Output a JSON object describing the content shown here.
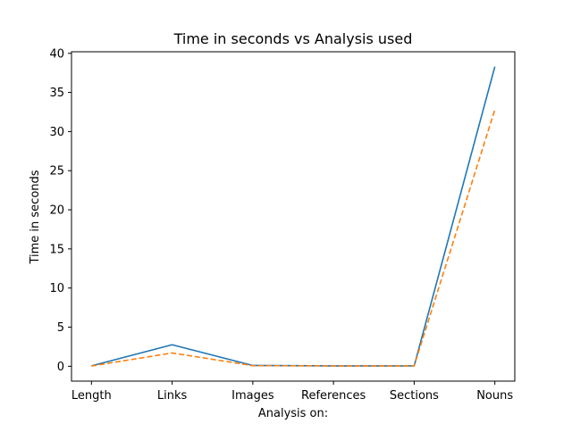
{
  "chart_data": {
    "type": "line",
    "title": "Time in seconds vs Analysis used",
    "xlabel": "Analysis on:",
    "ylabel": "Time in seconds",
    "categories": [
      "Length",
      "Links",
      "Images",
      "References",
      "Sections",
      "Nouns"
    ],
    "ylim": [
      -1.9,
      40.2
    ],
    "yticks": [
      0,
      5,
      10,
      15,
      20,
      25,
      30,
      35,
      40
    ],
    "grid": false,
    "series": [
      {
        "values": [
          0.05,
          2.75,
          0.1,
          0.05,
          0.05,
          38.3
        ],
        "color": "#1f77b4",
        "linestyle": "solid"
      },
      {
        "values": [
          0.03,
          1.7,
          0.08,
          0.05,
          0.05,
          32.8
        ],
        "color": "#ff7f0e",
        "linestyle": "dashed"
      }
    ]
  }
}
